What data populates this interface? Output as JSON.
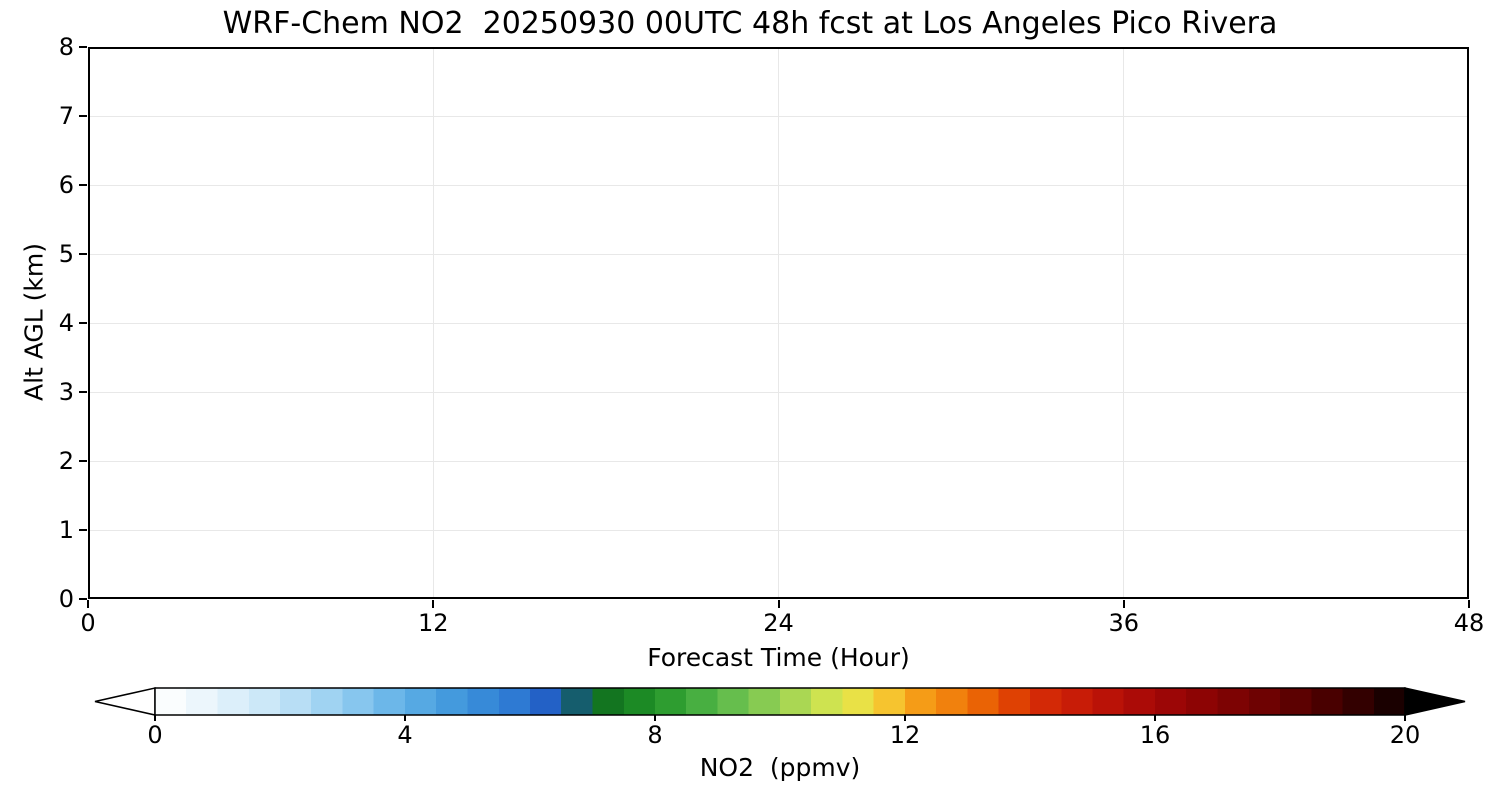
{
  "figure": {
    "background": "#ffffff",
    "axis_color": "#000000",
    "grid_color": "#e8e8e8"
  },
  "chart_data": {
    "type": "heatmap",
    "title": "WRF-Chem NO2  20250930 00UTC 48h fcst at Los Angeles Pico Rivera",
    "xlabel": "Forecast Time (Hour)",
    "ylabel": "Alt AGL (km)",
    "xlim": [
      0,
      48
    ],
    "ylim": [
      0,
      8
    ],
    "xticks": [
      0,
      12,
      24,
      36,
      48
    ],
    "yticks": [
      0,
      1,
      2,
      3,
      4,
      5,
      6,
      7,
      8
    ],
    "grid": true,
    "values": [],
    "plot_area_note": "plot area is blank white — no NO2 contour values rendered",
    "colorbar": {
      "label": "NO2  (ppmv)",
      "ticks": [
        0,
        4,
        8,
        12,
        16,
        20
      ],
      "range": [
        0,
        20
      ],
      "extend": "both",
      "under_color": "#ffffff",
      "over_color": "#000000",
      "colormap_stops": [
        [
          0,
          "#ffffff"
        ],
        [
          0.5,
          "#f4fafd"
        ],
        [
          1,
          "#e4f2fb"
        ],
        [
          2,
          "#c4e4f7"
        ],
        [
          3,
          "#94cdf0"
        ],
        [
          4,
          "#5fb0e6"
        ],
        [
          5,
          "#3b92da"
        ],
        [
          6,
          "#2a72d0"
        ],
        [
          6.5,
          "#1c50bc"
        ],
        [
          7,
          "#0e6a1e"
        ],
        [
          8,
          "#219427"
        ],
        [
          9,
          "#55b84a"
        ],
        [
          10,
          "#98d154"
        ],
        [
          11,
          "#e0e94e"
        ],
        [
          11.6,
          "#f5d53a"
        ],
        [
          12,
          "#f7a91c"
        ],
        [
          13,
          "#ef7408"
        ],
        [
          13.6,
          "#e34c02"
        ],
        [
          14,
          "#d92f05"
        ],
        [
          15,
          "#c21507"
        ],
        [
          16,
          "#a30707"
        ],
        [
          17,
          "#850303"
        ],
        [
          18,
          "#660101"
        ],
        [
          19,
          "#3f0000"
        ],
        [
          19.5,
          "#260000"
        ],
        [
          20,
          "#0d0000"
        ]
      ]
    }
  }
}
